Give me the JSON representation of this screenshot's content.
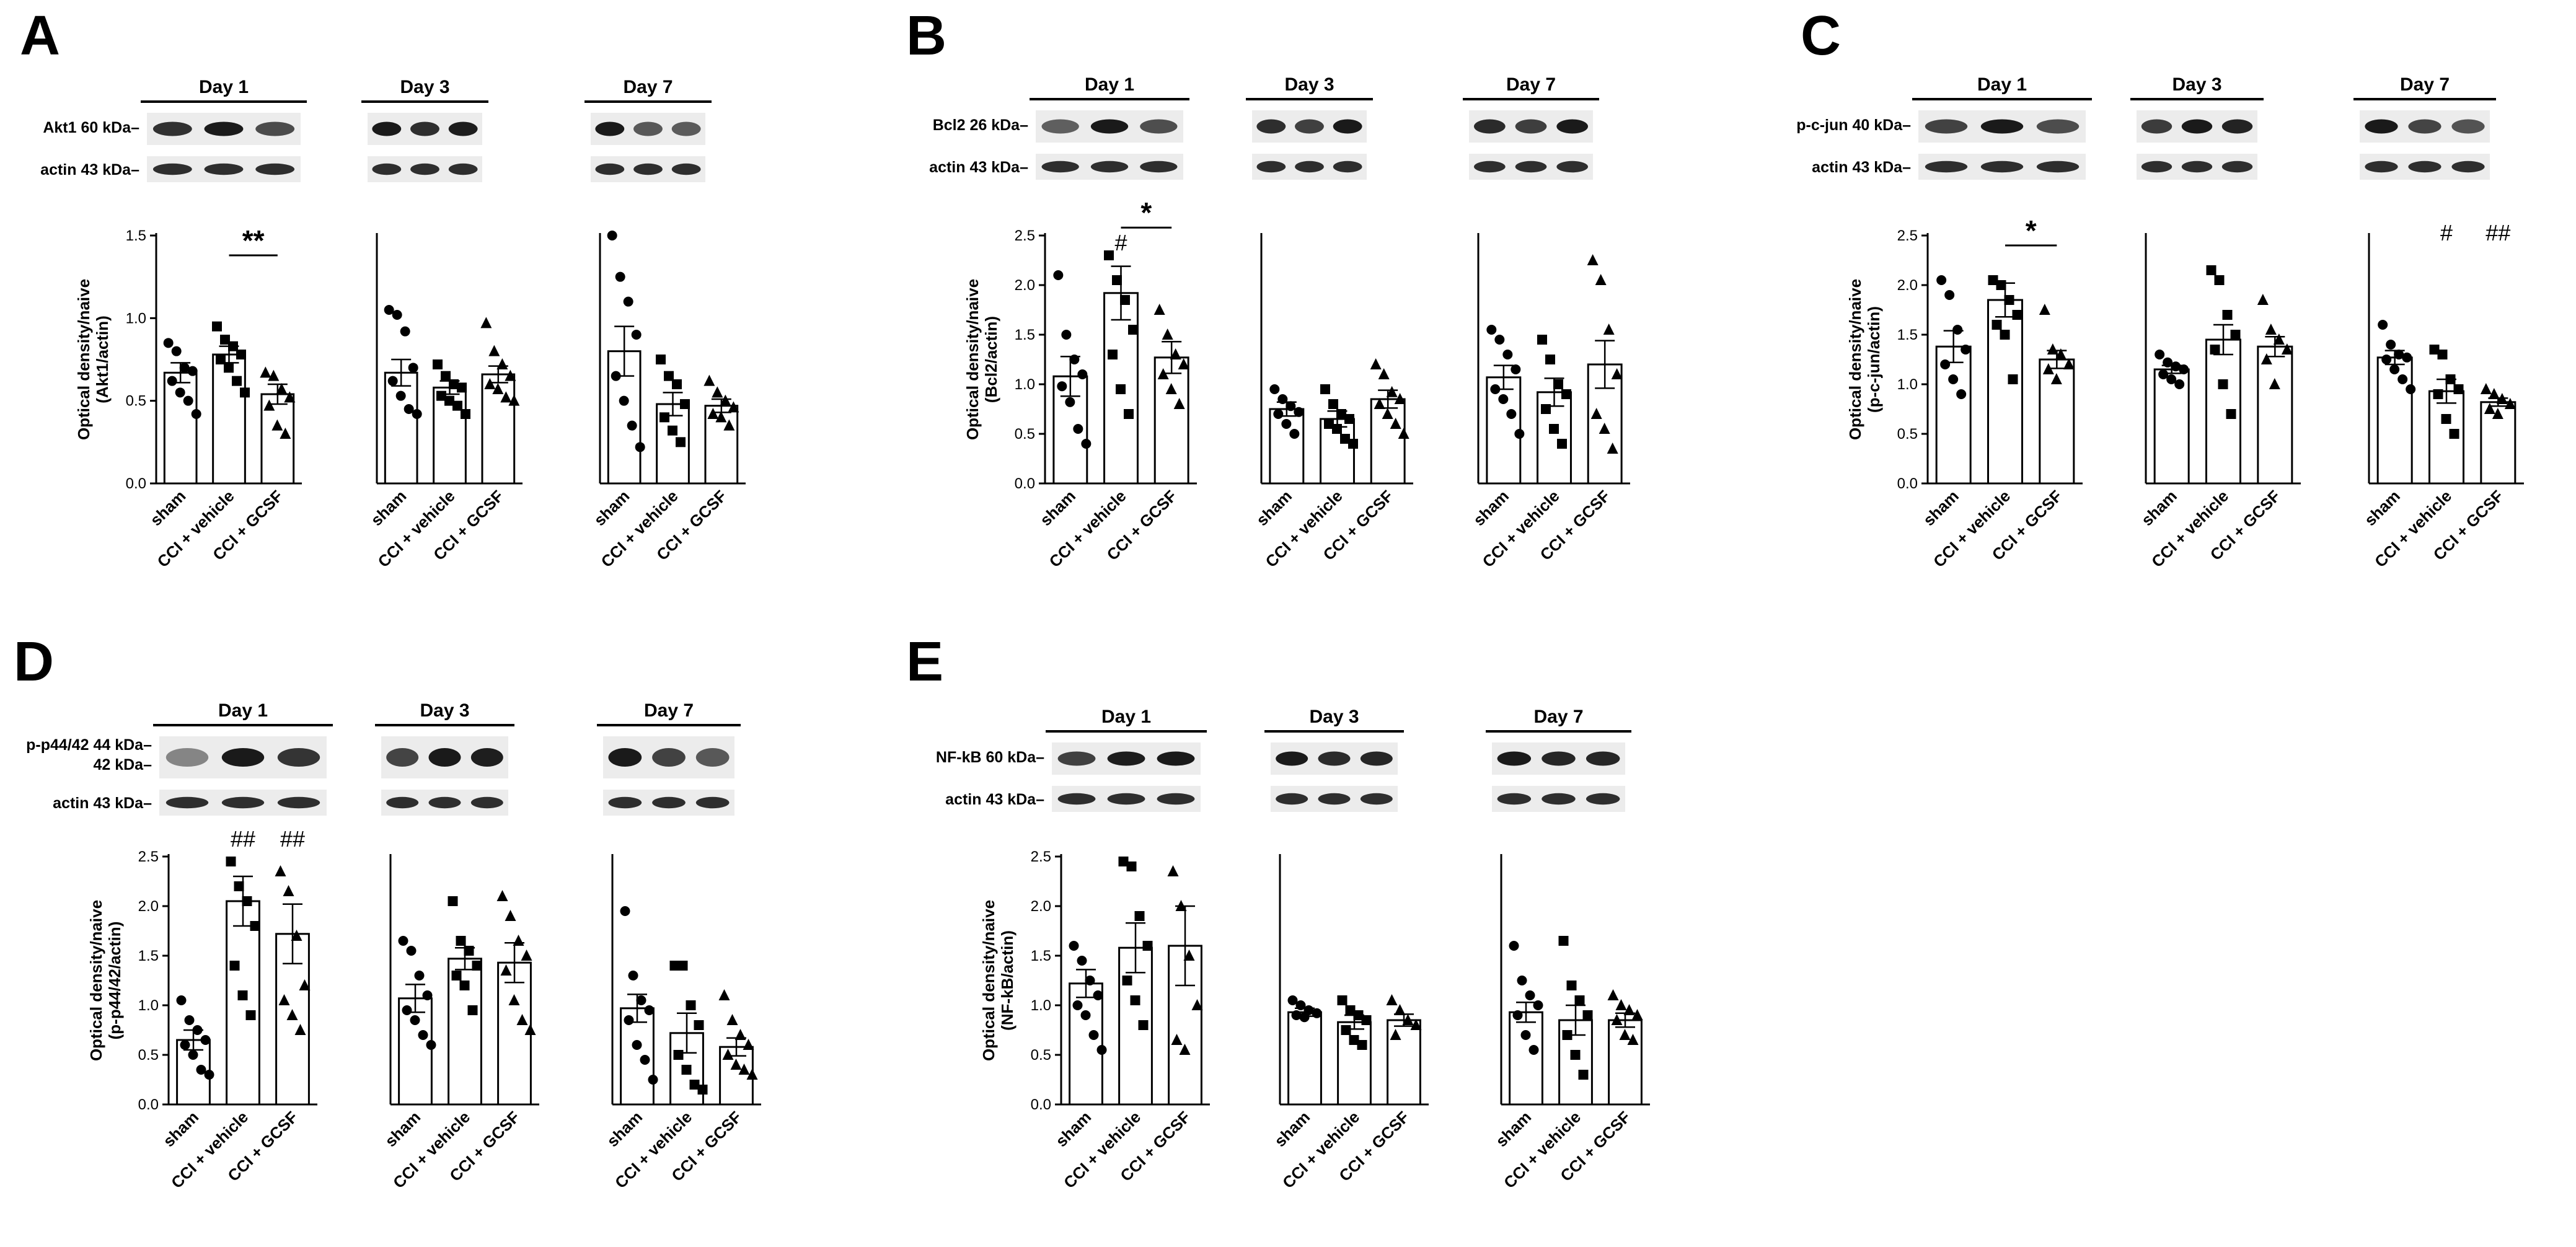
{
  "chart_data": [
    {
      "panel": "A",
      "type": "bar",
      "protein_band": "Akt1 60 kDa",
      "loading_band": "actin 43 kDa",
      "ylabel": [
        "Optical density/naive",
        "(Akt1/actin)"
      ],
      "ylim": [
        0,
        1.5
      ],
      "yticks": [
        "0.0",
        "0.5",
        "1.0",
        "1.5"
      ],
      "categories": [
        "sham",
        "CCI + vehicle",
        "CCI + GCSF"
      ],
      "markers": [
        "circle",
        "square",
        "triangle"
      ],
      "days": [
        {
          "label": "Day 1",
          "means": [
            0.67,
            0.78,
            0.54
          ],
          "sems": [
            0.06,
            0.05,
            0.06
          ],
          "points": [
            [
              0.85,
              0.8,
              0.7,
              0.68,
              0.62,
              0.55,
              0.5,
              0.42
            ],
            [
              0.95,
              0.87,
              0.83,
              0.78,
              0.75,
              0.7,
              0.62,
              0.55
            ],
            [
              0.67,
              0.65,
              0.57,
              0.52,
              0.47,
              0.35,
              0.3
            ]
          ],
          "annotations": [
            {
              "type": "bracket",
              "text": "**",
              "from": 1,
              "to": 2,
              "y": 1.38
            }
          ]
        },
        {
          "label": "Day 3",
          "means": [
            0.67,
            0.58,
            0.66
          ],
          "sems": [
            0.08,
            0.04,
            0.05
          ],
          "points": [
            [
              1.05,
              1.02,
              0.92,
              0.7,
              0.62,
              0.53,
              0.45,
              0.42
            ],
            [
              0.72,
              0.65,
              0.6,
              0.58,
              0.53,
              0.5,
              0.47,
              0.42
            ],
            [
              0.97,
              0.8,
              0.72,
              0.65,
              0.6,
              0.57,
              0.52,
              0.5
            ]
          ],
          "annotations": []
        },
        {
          "label": "Day 7",
          "means": [
            0.8,
            0.48,
            0.47
          ],
          "sems": [
            0.15,
            0.07,
            0.04
          ],
          "points": [
            [
              1.5,
              1.25,
              1.1,
              0.9,
              0.65,
              0.5,
              0.35,
              0.22
            ],
            [
              0.75,
              0.65,
              0.6,
              0.48,
              0.4,
              0.32,
              0.25
            ],
            [
              0.62,
              0.55,
              0.5,
              0.46,
              0.42,
              0.4,
              0.35
            ]
          ],
          "annotations": []
        }
      ]
    },
    {
      "panel": "B",
      "type": "bar",
      "protein_band": "Bcl2 26 kDa",
      "loading_band": "actin 43 kDa",
      "ylabel": [
        "Optical density/naive",
        "(Bcl2/actin)"
      ],
      "ylim": [
        0,
        2.5
      ],
      "yticks": [
        "0.0",
        "0.5",
        "1.0",
        "1.5",
        "2.0",
        "2.5"
      ],
      "categories": [
        "sham",
        "CCI + vehicle",
        "CCI + GCSF"
      ],
      "markers": [
        "circle",
        "square",
        "triangle"
      ],
      "days": [
        {
          "label": "Day 1",
          "means": [
            1.08,
            1.92,
            1.27
          ],
          "sems": [
            0.2,
            0.27,
            0.16
          ],
          "points": [
            [
              2.1,
              1.5,
              1.25,
              1.1,
              0.98,
              0.82,
              0.55,
              0.4
            ],
            [
              2.3,
              2.05,
              1.85,
              1.55,
              1.3,
              0.95,
              0.7
            ],
            [
              1.75,
              1.5,
              1.3,
              1.2,
              1.1,
              0.95,
              0.8
            ]
          ],
          "annotations": [
            {
              "type": "text",
              "text": "#",
              "over": 1,
              "y": 2.35
            },
            {
              "type": "bracket",
              "text": "*",
              "from": 1,
              "to": 2,
              "y": 2.58
            }
          ]
        },
        {
          "label": "Day 3",
          "means": [
            0.75,
            0.65,
            0.85
          ],
          "sems": [
            0.07,
            0.08,
            0.09
          ],
          "points": [
            [
              0.95,
              0.85,
              0.78,
              0.72,
              0.7,
              0.6,
              0.5
            ],
            [
              0.95,
              0.8,
              0.7,
              0.65,
              0.6,
              0.55,
              0.45,
              0.4
            ],
            [
              1.2,
              1.1,
              0.92,
              0.85,
              0.8,
              0.7,
              0.6,
              0.5
            ]
          ],
          "annotations": []
        },
        {
          "label": "Day 7",
          "means": [
            1.07,
            0.92,
            1.2
          ],
          "sems": [
            0.12,
            0.14,
            0.24
          ],
          "points": [
            [
              1.55,
              1.45,
              1.3,
              1.15,
              0.95,
              0.85,
              0.7,
              0.5
            ],
            [
              1.45,
              1.25,
              1.0,
              0.9,
              0.75,
              0.55,
              0.4
            ],
            [
              2.25,
              2.05,
              1.55,
              1.1,
              0.7,
              0.55,
              0.35
            ]
          ],
          "annotations": []
        }
      ]
    },
    {
      "panel": "C",
      "type": "bar",
      "protein_band": "p-c-jun 40 kDa",
      "loading_band": "actin 43 kDa",
      "ylabel": [
        "Optical density/naive",
        "(p-c-jun/actin)"
      ],
      "ylim": [
        0,
        2.5
      ],
      "yticks": [
        "0.0",
        "0.5",
        "1.0",
        "1.5",
        "2.0",
        "2.5"
      ],
      "categories": [
        "sham",
        "CCI + vehicle",
        "CCI + GCSF"
      ],
      "markers": [
        "circle",
        "square",
        "triangle"
      ],
      "days": [
        {
          "label": "Day 1",
          "means": [
            1.38,
            1.85,
            1.25
          ],
          "sems": [
            0.16,
            0.17,
            0.09
          ],
          "points": [
            [
              2.05,
              1.9,
              1.55,
              1.35,
              1.2,
              1.05,
              0.9
            ],
            [
              2.05,
              2.0,
              1.85,
              1.7,
              1.6,
              1.5,
              1.05
            ],
            [
              1.75,
              1.35,
              1.3,
              1.2,
              1.15,
              1.05
            ]
          ],
          "annotations": [
            {
              "type": "bracket",
              "text": "*",
              "from": 1,
              "to": 2,
              "y": 2.4
            }
          ]
        },
        {
          "label": "Day 3",
          "means": [
            1.15,
            1.45,
            1.38
          ],
          "sems": [
            0.04,
            0.15,
            0.1
          ],
          "points": [
            [
              1.3,
              1.22,
              1.18,
              1.15,
              1.1,
              1.05,
              1.0
            ],
            [
              2.15,
              2.05,
              1.7,
              1.5,
              1.35,
              1.0,
              0.7
            ],
            [
              1.85,
              1.55,
              1.45,
              1.35,
              1.25,
              1.0
            ]
          ],
          "annotations": []
        },
        {
          "label": "Day 7",
          "means": [
            1.27,
            0.93,
            0.82
          ],
          "sems": [
            0.07,
            0.12,
            0.04
          ],
          "points": [
            [
              1.6,
              1.4,
              1.3,
              1.27,
              1.25,
              1.15,
              1.05,
              0.95
            ],
            [
              1.35,
              1.3,
              1.05,
              0.95,
              0.9,
              0.65,
              0.5
            ],
            [
              0.95,
              0.9,
              0.85,
              0.8,
              0.75,
              0.7
            ]
          ],
          "annotations": [
            {
              "type": "text",
              "text": "#",
              "over": 1,
              "y": 2.45
            },
            {
              "type": "text",
              "text": "##",
              "over": 2,
              "y": 2.45
            }
          ]
        }
      ]
    },
    {
      "panel": "D",
      "type": "bar",
      "protein_band": "p-p44/42 44 kDa",
      "protein_band_2": "42 kDa",
      "loading_band": "actin 43 kDa",
      "ylabel": [
        "Optical density/naive",
        "(p-p44/42/actin)"
      ],
      "ylim": [
        0,
        2.5
      ],
      "yticks": [
        "0.0",
        "0.5",
        "1.0",
        "1.5",
        "2.0",
        "2.5"
      ],
      "categories": [
        "sham",
        "CCI + vehicle",
        "CCI + GCSF"
      ],
      "markers": [
        "circle",
        "square",
        "triangle"
      ],
      "days": [
        {
          "label": "Day 1",
          "means": [
            0.65,
            2.05,
            1.72
          ],
          "sems": [
            0.1,
            0.25,
            0.3
          ],
          "points": [
            [
              1.05,
              0.85,
              0.75,
              0.65,
              0.6,
              0.5,
              0.35,
              0.3
            ],
            [
              2.45,
              2.2,
              2.05,
              1.8,
              1.4,
              1.1,
              0.9
            ],
            [
              2.35,
              2.15,
              1.7,
              1.2,
              1.05,
              0.9,
              0.75
            ]
          ],
          "annotations": [
            {
              "type": "text",
              "text": "##",
              "over": 1,
              "y": 2.6
            },
            {
              "type": "text",
              "text": "##",
              "over": 2,
              "y": 2.6
            }
          ]
        },
        {
          "label": "Day 3",
          "means": [
            1.07,
            1.47,
            1.43
          ],
          "sems": [
            0.14,
            0.11,
            0.2
          ],
          "points": [
            [
              1.65,
              1.55,
              1.3,
              1.1,
              0.95,
              0.85,
              0.7,
              0.6
            ],
            [
              2.05,
              1.65,
              1.55,
              1.4,
              1.3,
              1.2,
              0.95
            ],
            [
              2.1,
              1.9,
              1.65,
              1.5,
              1.35,
              1.05,
              0.85,
              0.75
            ]
          ],
          "annotations": []
        },
        {
          "label": "Day 7",
          "means": [
            0.97,
            0.72,
            0.58
          ],
          "sems": [
            0.14,
            0.2,
            0.09
          ],
          "points": [
            [
              1.95,
              1.3,
              1.05,
              0.95,
              0.85,
              0.6,
              0.45,
              0.25
            ],
            [
              1.4,
              1.4,
              1.0,
              0.8,
              0.5,
              0.35,
              0.2,
              0.15
            ],
            [
              1.1,
              0.85,
              0.7,
              0.6,
              0.5,
              0.4,
              0.35,
              0.3
            ]
          ],
          "annotations": []
        }
      ]
    },
    {
      "panel": "E",
      "type": "bar",
      "protein_band": "NF-kB 60 kDa",
      "loading_band": "actin 43 kDa",
      "ylabel": [
        "Optical density/naive",
        "(NF-kB/actin)"
      ],
      "ylim": [
        0,
        2.5
      ],
      "yticks": [
        "0.0",
        "0.5",
        "1.0",
        "1.5",
        "2.0",
        "2.5"
      ],
      "categories": [
        "sham",
        "CCI + vehicle",
        "CCI + GCSF"
      ],
      "markers": [
        "circle",
        "square",
        "triangle"
      ],
      "days": [
        {
          "label": "Day 1",
          "means": [
            1.22,
            1.58,
            1.6
          ],
          "sems": [
            0.14,
            0.25,
            0.4
          ],
          "points": [
            [
              1.6,
              1.45,
              1.25,
              1.1,
              1.0,
              0.9,
              0.7,
              0.55
            ],
            [
              2.45,
              2.4,
              1.9,
              1.6,
              1.25,
              1.05,
              0.8
            ],
            [
              2.35,
              2.0,
              1.5,
              1.0,
              0.65,
              0.55
            ]
          ],
          "annotations": []
        },
        {
          "label": "Day 3",
          "means": [
            0.93,
            0.83,
            0.85
          ],
          "sems": [
            0.04,
            0.07,
            0.06
          ],
          "points": [
            [
              1.05,
              1.0,
              0.95,
              0.92,
              0.9,
              0.88
            ],
            [
              1.05,
              0.95,
              0.9,
              0.85,
              0.75,
              0.65,
              0.6
            ],
            [
              1.05,
              0.95,
              0.85,
              0.8,
              0.7
            ]
          ],
          "annotations": []
        },
        {
          "label": "Day 7",
          "means": [
            0.93,
            0.85,
            0.85
          ],
          "sems": [
            0.1,
            0.15,
            0.07
          ],
          "points": [
            [
              1.6,
              1.25,
              1.1,
              1.0,
              0.9,
              0.7,
              0.55
            ],
            [
              1.65,
              1.2,
              1.05,
              0.9,
              0.7,
              0.5,
              0.3
            ],
            [
              1.1,
              1.0,
              0.95,
              0.9,
              0.85,
              0.7,
              0.65
            ]
          ],
          "annotations": []
        }
      ]
    }
  ]
}
